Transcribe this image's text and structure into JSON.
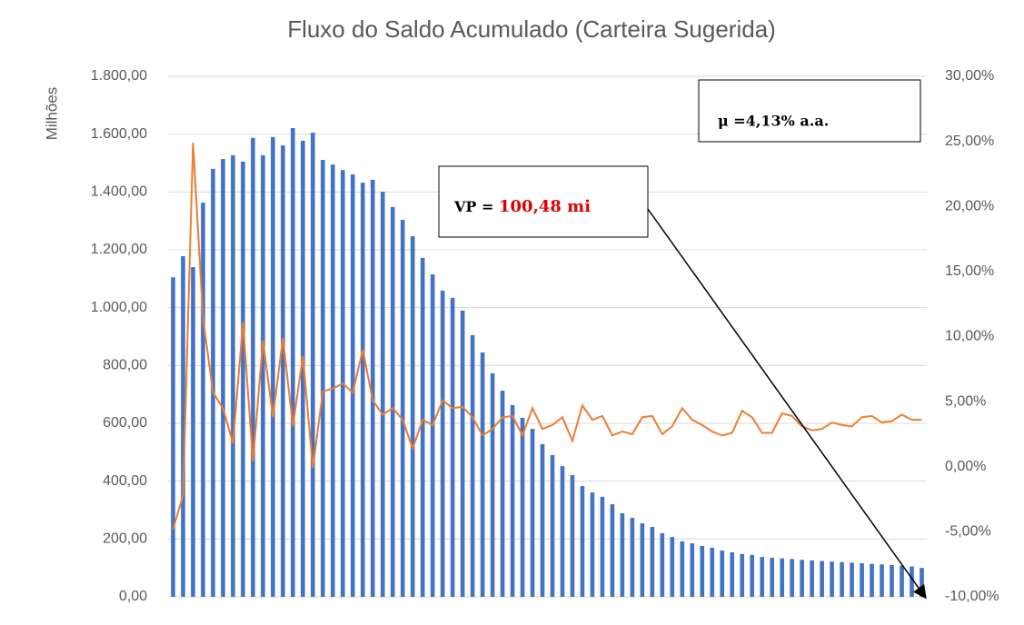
{
  "chart_data": {
    "type": "bar-line",
    "title": "Fluxo do Saldo Acumulado (Carteira Sugerida)",
    "y_label": "Milhões",
    "categories": [
      null,
      null,
      null,
      null,
      null,
      null,
      null,
      null,
      null,
      null,
      null,
      null,
      null,
      null,
      null,
      null,
      null,
      null,
      null,
      null,
      null,
      null,
      null,
      null,
      null,
      null,
      null,
      null,
      null,
      null,
      null,
      null,
      null,
      null,
      null,
      null,
      null,
      null,
      null,
      null,
      null,
      null,
      null,
      null,
      null,
      null,
      null,
      null,
      null,
      null,
      null,
      null,
      null,
      null,
      null,
      null,
      null,
      null,
      null,
      null,
      null,
      null,
      null,
      null,
      null,
      null,
      null,
      null,
      null,
      null,
      null,
      null,
      null,
      null,
      null,
      null
    ],
    "series": [
      {
        "type": "bar",
        "color": "#4472c4",
        "values": [
          1105,
          1178,
          1140,
          1363,
          1480,
          1514,
          1527,
          1505,
          1587,
          1527,
          1590,
          1561,
          1621,
          1577,
          1605,
          1511,
          1495,
          1476,
          1461,
          1432,
          1442,
          1401,
          1348,
          1304,
          1247,
          1172,
          1115,
          1059,
          1034,
          990,
          905,
          845,
          773,
          713,
          663,
          619,
          581,
          528,
          490,
          452,
          421,
          383,
          361,
          346,
          320,
          289,
          273,
          254,
          242,
          220,
          207,
          192,
          185,
          176,
          170,
          160,
          154,
          148,
          145,
          138,
          135,
          133,
          131,
          128,
          126,
          124,
          122,
          120,
          118,
          116,
          114,
          112,
          110,
          108,
          105,
          100
        ]
      },
      {
        "type": "line",
        "color": "#ed7d31",
        "axis": "y2",
        "values": [
          -4.8,
          -2.2,
          24.9,
          11.4,
          5.7,
          4.5,
          1.8,
          11.1,
          0.4,
          9.7,
          3.8,
          9.9,
          3.1,
          8.5,
          -0.1,
          5.8,
          6.0,
          6.4,
          5.7,
          9.0,
          5.1,
          4.0,
          4.5,
          3.6,
          1.4,
          3.6,
          3.2,
          5.1,
          4.5,
          4.6,
          3.8,
          2.4,
          2.9,
          3.8,
          3.9,
          2.4,
          4.5,
          2.9,
          3.2,
          3.8,
          2.0,
          4.7,
          3.6,
          3.9,
          2.4,
          2.7,
          2.5,
          3.8,
          3.9,
          2.5,
          3.1,
          4.5,
          3.6,
          3.2,
          2.7,
          2.4,
          2.6,
          4.3,
          3.8,
          2.6,
          2.6,
          4.1,
          3.9,
          3.1,
          2.8,
          2.9,
          3.4,
          3.2,
          3.1,
          3.8,
          3.9,
          3.4,
          3.5,
          4.0,
          3.6,
          3.6
        ]
      }
    ],
    "ylim": [
      0,
      1800
    ],
    "yticks": [
      {
        "value": 0,
        "label": "0,00"
      },
      {
        "value": 200,
        "label": "200,00"
      },
      {
        "value": 400,
        "label": "400,00"
      },
      {
        "value": 600,
        "label": "600,00"
      },
      {
        "value": 800,
        "label": "800,00"
      },
      {
        "value": 1000,
        "label": "1.000,00"
      },
      {
        "value": 1200,
        "label": "1.200,00"
      },
      {
        "value": 1400,
        "label": "1.400,00"
      },
      {
        "value": 1600,
        "label": "1.600,00"
      },
      {
        "value": 1800,
        "label": "1.800,00"
      }
    ],
    "y2lim": [
      -10,
      30
    ],
    "y2ticks": [
      {
        "value": -10,
        "label": "-10,00%"
      },
      {
        "value": -5,
        "label": "-5,00%"
      },
      {
        "value": 0,
        "label": "0,00%"
      },
      {
        "value": 5,
        "label": "5,00%"
      },
      {
        "value": 10,
        "label": "10,00%"
      },
      {
        "value": 15,
        "label": "15,00%"
      },
      {
        "value": 20,
        "label": "20,00%"
      },
      {
        "value": 25,
        "label": "25,00%"
      },
      {
        "value": 30,
        "label": "30,00%"
      }
    ],
    "grid": true,
    "annotations": {
      "mu": "μ =4,13% a.a.",
      "vp_prefix": "VP = ",
      "vp_value": "100,48 mi"
    }
  }
}
